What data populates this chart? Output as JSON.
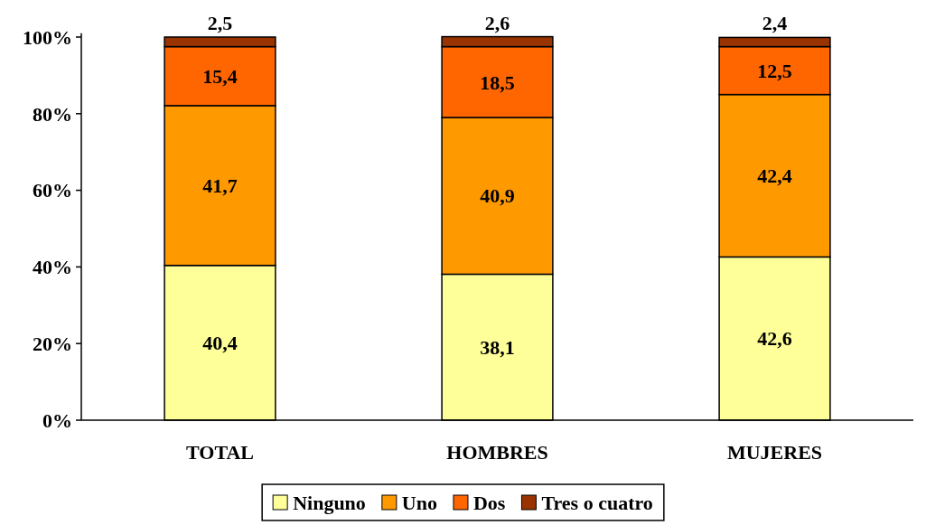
{
  "chart_data": {
    "type": "bar",
    "stacked": true,
    "categories": [
      "TOTAL",
      "HOMBRES",
      "MUJERES"
    ],
    "series": [
      {
        "name": "Ninguno",
        "color": "#ffff99",
        "values": [
          40.4,
          38.1,
          42.6
        ],
        "value_labels": [
          "40,4",
          "38,1",
          "42,6"
        ]
      },
      {
        "name": "Uno",
        "color": "#ff9900",
        "values": [
          41.7,
          40.9,
          42.4
        ],
        "value_labels": [
          "41,7",
          "40,9",
          "42,4"
        ]
      },
      {
        "name": "Dos",
        "color": "#ff6600",
        "values": [
          15.4,
          18.5,
          12.5
        ],
        "value_labels": [
          "15,4",
          "18,5",
          "12,5"
        ]
      },
      {
        "name": "Tres o cuatro",
        "color": "#993300",
        "values": [
          2.5,
          2.6,
          2.4
        ],
        "value_labels": [
          "2,5",
          "2,6",
          "2,4"
        ]
      }
    ],
    "ylim": [
      0,
      101
    ],
    "yticks": [
      {
        "value": 0,
        "label": "0%"
      },
      {
        "value": 20,
        "label": "20%"
      },
      {
        "value": 40,
        "label": "40%"
      },
      {
        "value": 60,
        "label": "60%"
      },
      {
        "value": 80,
        "label": "80%"
      },
      {
        "value": 100,
        "label": "100%"
      }
    ],
    "grid": false,
    "legend": "bottom"
  }
}
